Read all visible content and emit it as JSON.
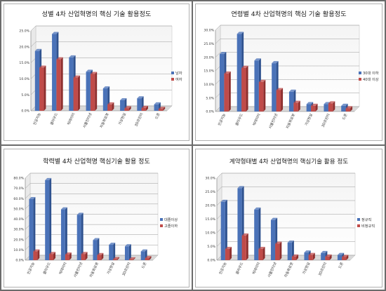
{
  "colors": {
    "blue": "#4a72b8",
    "red": "#c04b49",
    "blueDark": "#2f528f",
    "redDark": "#8e2f2e",
    "grid": "#9a9a9a",
    "wallTop": "#f4f4f4",
    "wallBottom": "#ffffff"
  },
  "chart_data": [
    {
      "type": "bar",
      "title": "성별 4차 산업혁명의 핵심 기술 활용정도",
      "xlabel": "",
      "ylabel": "",
      "categories": [
        "인공지능",
        "클라우드",
        "빅데이터",
        "사물인터넷",
        "자동화로봇",
        "가상현실",
        "3D프린터",
        "드론"
      ],
      "series": [
        {
          "name": "남자",
          "values": [
            18.7,
            24.0,
            16.7,
            12.2,
            7.0,
            3.3,
            3.9,
            2.0
          ]
        },
        {
          "name": "여자",
          "values": [
            13.5,
            16.1,
            10.4,
            11.5,
            2.0,
            0.8,
            0.9,
            0.6
          ]
        }
      ],
      "ylim": [
        0,
        25
      ],
      "yticks": [
        0,
        5,
        10,
        15,
        20,
        25
      ],
      "tick_labels": [
        "0.0%",
        "5.0%",
        "10.0%",
        "15.0%",
        "20.0%",
        "25.0%"
      ],
      "grid": true,
      "legend": "right"
    },
    {
      "type": "bar",
      "title": "연령별 4차 산업혁명의 핵심 기술 활용정도",
      "xlabel": "",
      "ylabel": "",
      "categories": [
        "인공지능",
        "클라우드",
        "빅데이터",
        "사물인터넷",
        "자동화로봇",
        "가상현실",
        "3D프린터",
        "드론"
      ],
      "series": [
        {
          "name": "30대 이하",
          "values": [
            21.2,
            28.6,
            18.8,
            17.8,
            7.3,
            2.7,
            2.7,
            2.1
          ]
        },
        {
          "name": "40대 이상",
          "values": [
            14.0,
            16.1,
            10.9,
            7.9,
            3.2,
            2.1,
            3.0,
            1.2
          ]
        }
      ],
      "ylim": [
        0,
        30
      ],
      "yticks": [
        0,
        5,
        10,
        15,
        20,
        25,
        30
      ],
      "tick_labels": [
        "0.0%",
        "5.0%",
        "10.0%",
        "15.0%",
        "20.0%",
        "25.0%",
        "30.0%"
      ],
      "grid": true,
      "legend": "right"
    },
    {
      "type": "bar",
      "title": "학력별 4차 산업혁명 핵심기술 활용 정도",
      "xlabel": "",
      "ylabel": "",
      "categories": [
        "인공지능",
        "클라우드",
        "빅데이터",
        "사물인터넷",
        "자동화로봇",
        "가상현실",
        "3D프린터",
        "드론"
      ],
      "series": [
        {
          "name": "대졸이상",
          "values": [
            59.5,
            78.0,
            49.5,
            44.2,
            19.5,
            15.0,
            13.5,
            8.5
          ]
        },
        {
          "name": "고졸이하",
          "values": [
            8.5,
            6.0,
            5.5,
            6.0,
            5.0,
            1.0,
            0.8,
            2.0
          ]
        }
      ],
      "ylim": [
        0,
        80
      ],
      "yticks": [
        0,
        10,
        20,
        30,
        40,
        50,
        60,
        70,
        80
      ],
      "tick_labels": [
        "0.0%",
        "10.0%",
        "20.0%",
        "30.0%",
        "40.0%",
        "50.0%",
        "60.0%",
        "70.0%",
        "80.0%"
      ],
      "grid": true,
      "legend": "right"
    },
    {
      "type": "bar",
      "title": "계약형태별 4차 산업혁명의 핵심기술 활용 정도",
      "xlabel": "",
      "ylabel": "",
      "categories": [
        "인공지능",
        "클라우드",
        "빅데이터",
        "사물인터넷",
        "자동화로봇",
        "가상현실",
        "3D프린터",
        "드론"
      ],
      "series": [
        {
          "name": "정규직",
          "values": [
            21.3,
            26.3,
            18.5,
            14.7,
            6.4,
            2.8,
            2.6,
            1.9
          ]
        },
        {
          "name": "비정규직",
          "values": [
            4.1,
            9.0,
            4.1,
            6.0,
            1.3,
            1.9,
            1.3,
            1.2
          ]
        }
      ],
      "ylim": [
        0,
        30
      ],
      "yticks": [
        0,
        5,
        10,
        15,
        20,
        25,
        30
      ],
      "tick_labels": [
        "0.0%",
        "5.0%",
        "10.0%",
        "15.0%",
        "20.0%",
        "25.0%",
        "30.0%"
      ],
      "grid": true,
      "legend": "right"
    }
  ]
}
